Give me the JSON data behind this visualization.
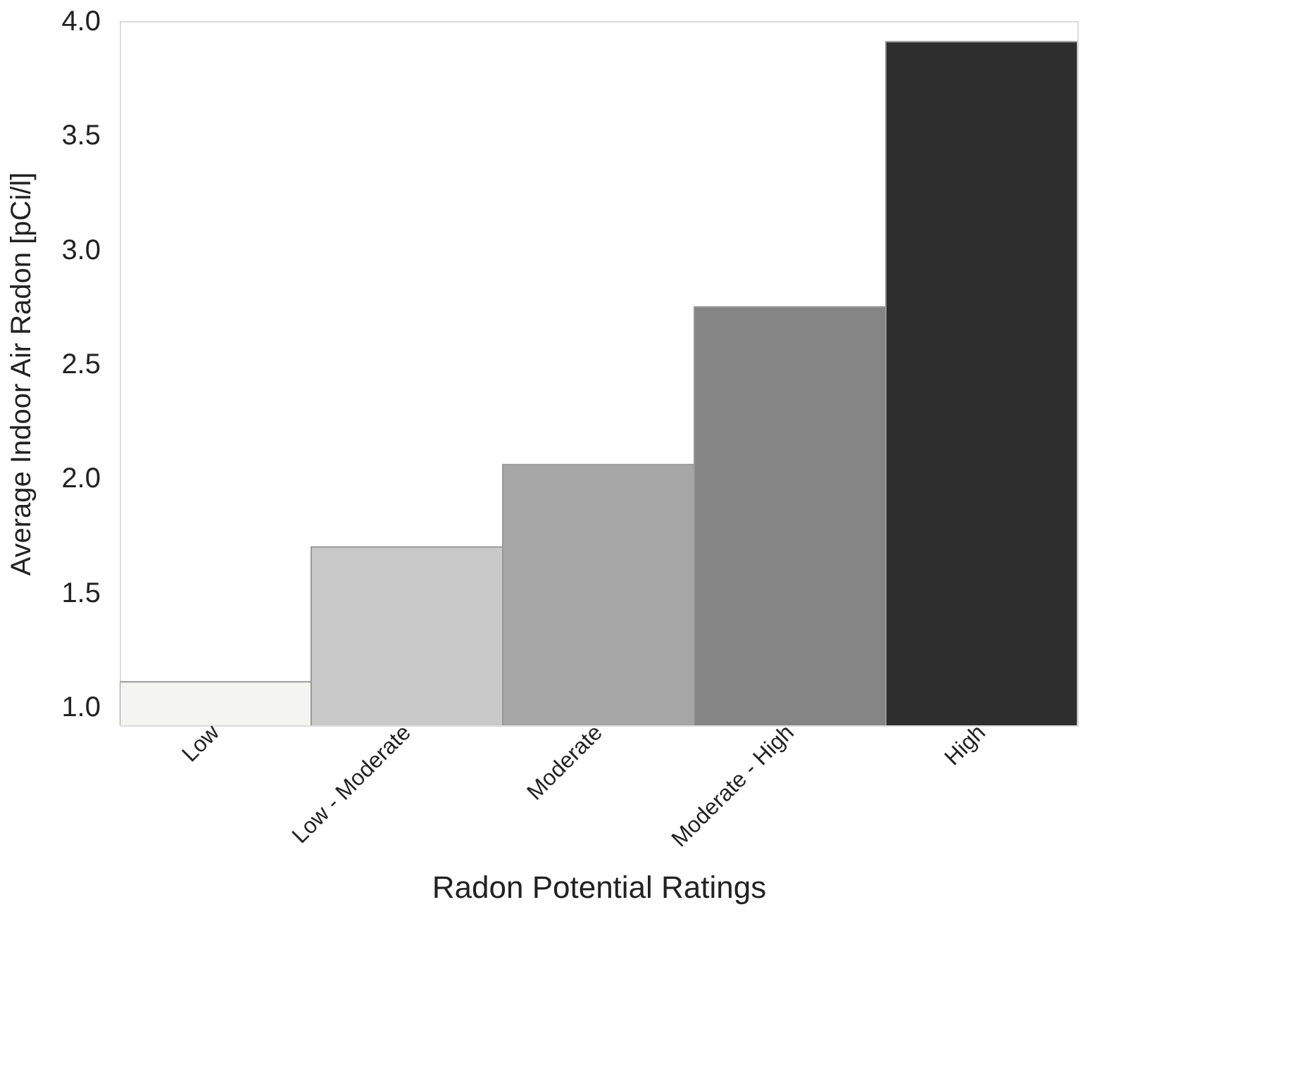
{
  "chart_data": {
    "type": "bar",
    "xlabel": "Radon Potential Ratings",
    "ylabel": "Average Indoor Air Radon [pCi/l]",
    "categories": [
      "Low",
      "Low - Moderate",
      "Moderate",
      "Moderate - High",
      "High"
    ],
    "values": [
      1.11,
      1.7,
      2.06,
      2.75,
      3.91
    ],
    "colors": [
      "#f4f4f0",
      "#c9c9c9",
      "#a6a6a6",
      "#858585",
      "#2e2e2e"
    ],
    "ylim": [
      0.92,
      4.0
    ],
    "yticks": [
      {
        "value": 1,
        "label": "1.0"
      },
      1.5,
      {
        "value": 2,
        "label": "2.0"
      },
      2.5,
      {
        "value": 3,
        "label": "3.0"
      },
      3.5,
      {
        "value": 4,
        "label": "4.0"
      }
    ],
    "grid": false
  }
}
